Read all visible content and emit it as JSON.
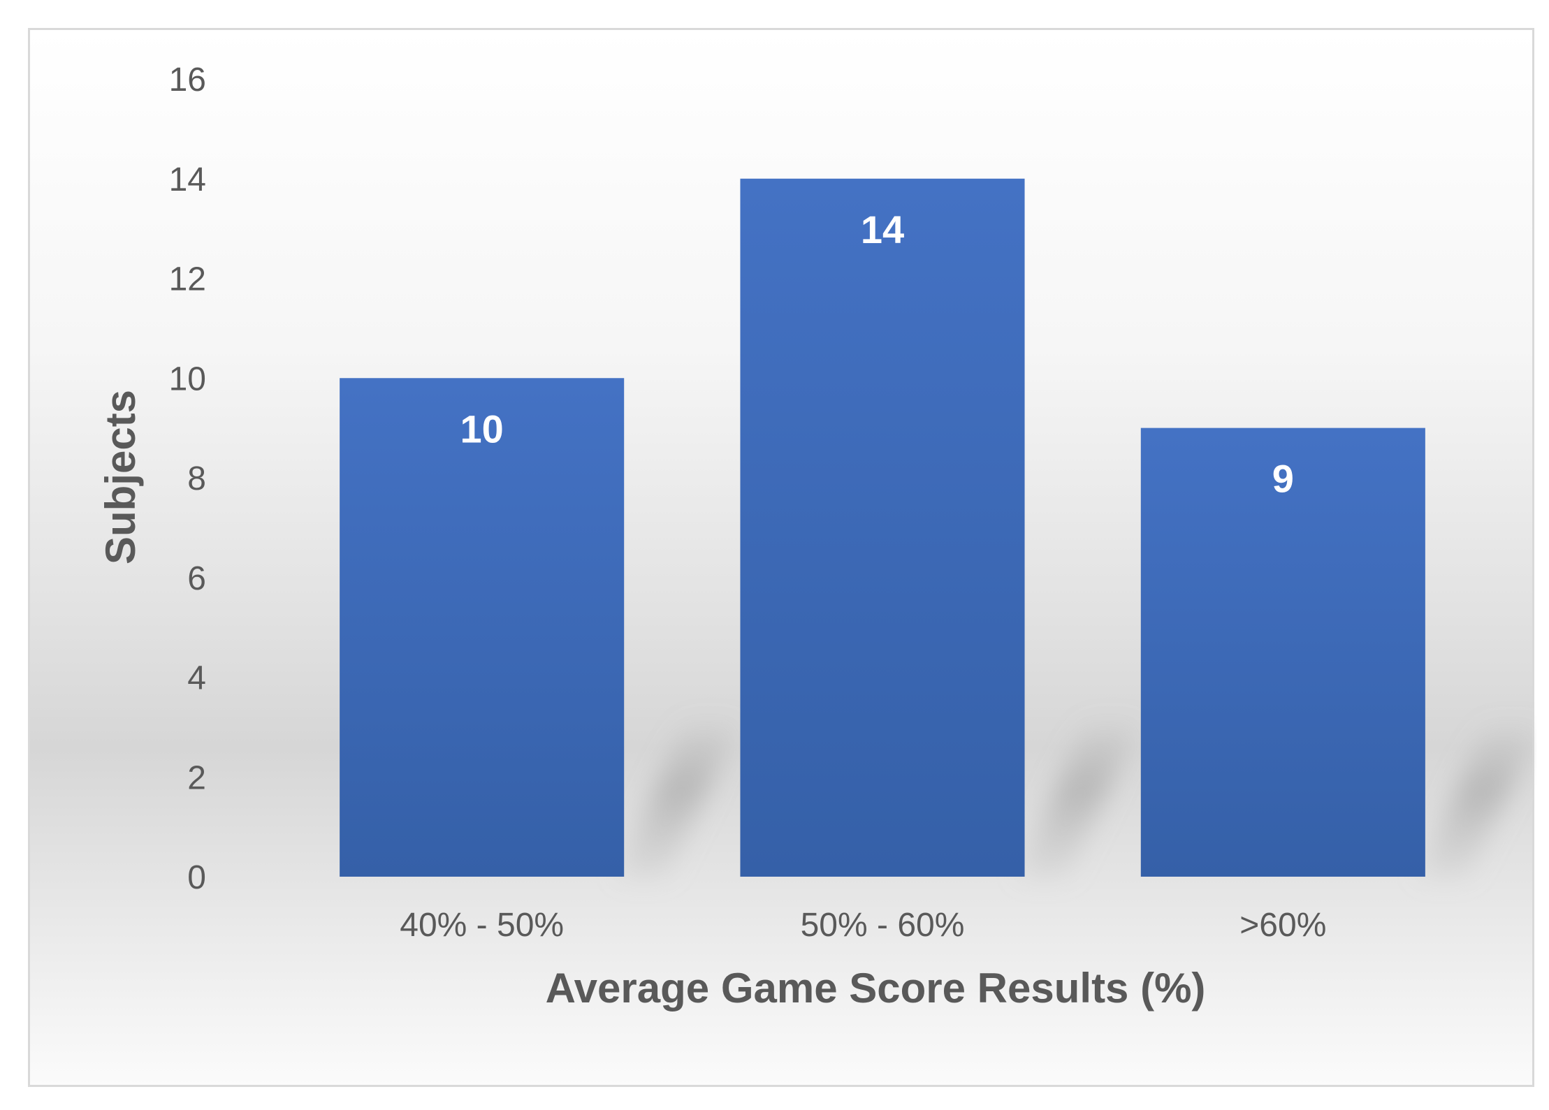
{
  "chart_data": {
    "type": "bar",
    "categories": [
      "40% - 50%",
      "50% - 60%",
      ">60%"
    ],
    "values": [
      10,
      14,
      9
    ],
    "data_labels": [
      "10",
      "14",
      "9"
    ],
    "xlabel": "Average Game Score Results (%)",
    "ylabel": "Subjects",
    "ylim": [
      0,
      16
    ],
    "yticks": [
      0,
      2,
      4,
      6,
      8,
      10,
      12,
      14,
      16
    ],
    "grid": false,
    "legend": "none",
    "colors": {
      "bar_top": "#4472c4",
      "bar_bottom": "#3560a8",
      "text": "#595959",
      "label": "#ffffff"
    }
  }
}
